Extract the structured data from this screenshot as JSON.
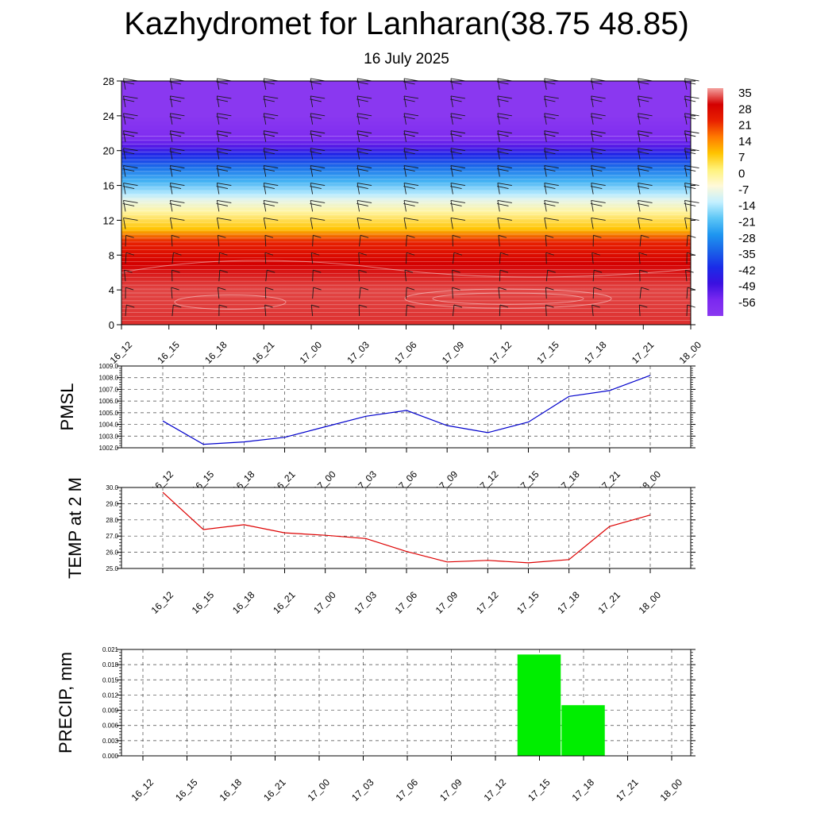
{
  "title": "Kazhydromet for Lanharan(38.75 48.85)",
  "subtitle": "16 July 2025",
  "chart_data": [
    {
      "type": "heatmap",
      "x_labels": [
        "16_12",
        "16_15",
        "16_18",
        "16_21",
        "17_00",
        "17_03",
        "17_06",
        "17_09",
        "17_12",
        "17_15",
        "17_18",
        "17_21",
        "18_00"
      ],
      "y_ticks": [
        "0",
        "4",
        "8",
        "12",
        "16",
        "20",
        "24",
        "28"
      ],
      "ylim": [
        0,
        28
      ],
      "colorbar_labels": [
        "35",
        "28",
        "21",
        "14",
        "7",
        "0",
        "-7",
        "-14",
        "-21",
        "-28",
        "-35",
        "-42",
        "-49",
        "-56"
      ],
      "temperature_profile": [
        {
          "h": 0,
          "t": 30
        },
        {
          "h": 4,
          "t": 31
        },
        {
          "h": 7,
          "t": 28
        },
        {
          "h": 9.5,
          "t": 21
        },
        {
          "h": 11,
          "t": 7
        },
        {
          "h": 13,
          "t": -3
        },
        {
          "h": 14.3,
          "t": -10
        },
        {
          "h": 15,
          "t": -15
        },
        {
          "h": 16.5,
          "t": -24
        },
        {
          "h": 18,
          "t": -33
        },
        {
          "h": 19.5,
          "t": -43
        },
        {
          "h": 20.5,
          "t": -52
        },
        {
          "h": 21.5,
          "t": -58
        },
        {
          "h": 24,
          "t": -62
        },
        {
          "h": 28,
          "t": -62
        }
      ],
      "colors": {
        "35": "#f4a3a0",
        "28": "#d40000",
        "21": "#e82000",
        "14": "#ff7a00",
        "7": "#ffc400",
        "0": "#fff27a",
        "-7": "#fff9d8",
        "-14": "#c4f0ff",
        "-21": "#5cc6f6",
        "-28": "#1e96f0",
        "-35": "#1a63e8",
        "-42": "#1a2ce8",
        "-49": "#3a10e0",
        "-56": "#7a28f0",
        "-62": "#8a38f0"
      },
      "wind_barbs": "present"
    },
    {
      "type": "line",
      "ylabel": "PMSL",
      "x_labels": [
        "16_12",
        "16_15",
        "16_18",
        "16_21",
        "17_00",
        "17_03",
        "17_06",
        "17_09",
        "17_12",
        "17_15",
        "17_18",
        "17_21",
        "18_00"
      ],
      "y_ticks": [
        "1002.0",
        "1003.0",
        "1004.0",
        "1005.0",
        "1006.0",
        "1007.0",
        "1008.0",
        "1009.0"
      ],
      "ylim": [
        1002,
        1009
      ],
      "values": [
        1004.3,
        1002.3,
        1002.5,
        1002.9,
        1003.8,
        1004.7,
        1005.2,
        1003.9,
        1003.3,
        1004.2,
        1006.4,
        1006.9,
        1008.2
      ],
      "color": "#0000cc"
    },
    {
      "type": "line",
      "ylabel": "TEMP at 2 M",
      "x_labels": [
        "16_12",
        "16_15",
        "16_18",
        "16_21",
        "17_00",
        "17_03",
        "17_06",
        "17_09",
        "17_12",
        "17_15",
        "17_18",
        "17_21",
        "18_00"
      ],
      "y_ticks": [
        "25.0",
        "26.0",
        "27.0",
        "28.0",
        "29.0",
        "30.0"
      ],
      "ylim": [
        25,
        30
      ],
      "values": [
        29.7,
        27.4,
        27.7,
        27.2,
        27.05,
        26.85,
        26.05,
        25.4,
        25.5,
        25.35,
        25.55,
        27.6,
        28.3
      ],
      "color": "#dd0000"
    },
    {
      "type": "bar",
      "ylabel": "PRECIP, mm",
      "x_labels": [
        "16_12",
        "16_15",
        "16_18",
        "16_21",
        "17_00",
        "17_03",
        "17_06",
        "17_09",
        "17_12",
        "17_15",
        "17_18",
        "17_21",
        "18_00"
      ],
      "y_ticks": [
        "0.000",
        "0.003",
        "0.006",
        "0.009",
        "0.012",
        "0.015",
        "0.018",
        "0.021"
      ],
      "ylim": [
        0,
        0.021
      ],
      "values": [
        0,
        0,
        0,
        0,
        0,
        0,
        0,
        0,
        0,
        0.02,
        0.01,
        0,
        0
      ],
      "color": "#00ee00"
    }
  ]
}
